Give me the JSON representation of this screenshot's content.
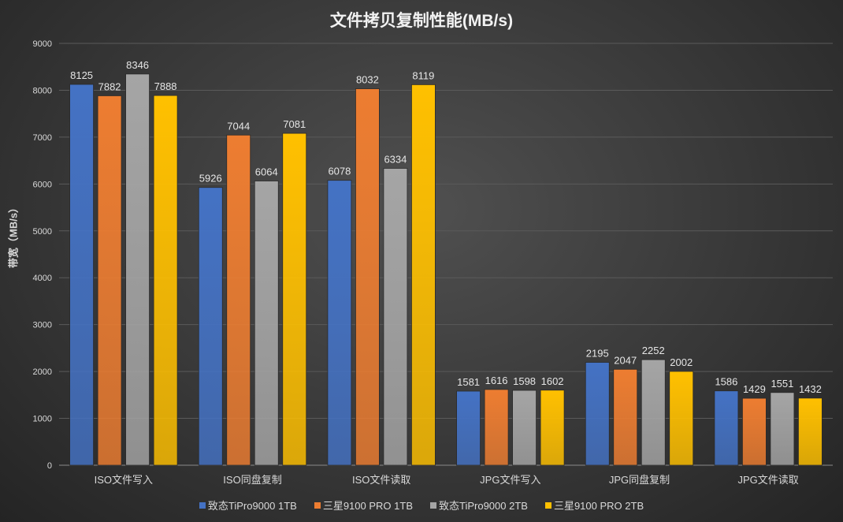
{
  "chart_data": {
    "type": "bar",
    "title": "文件拷贝复制性能(MB/s)",
    "xlabel": "",
    "ylabel": "带宽（MB/s）",
    "ylim": [
      0,
      9000
    ],
    "yticks": [
      0,
      1000,
      2000,
      3000,
      4000,
      5000,
      6000,
      7000,
      8000,
      9000
    ],
    "grid": true,
    "legend_position": "bottom",
    "categories": [
      "ISO文件写入",
      "ISO同盘复制",
      "ISO文件读取",
      "JPG文件写入",
      "JPG同盘复制",
      "JPG文件读取"
    ],
    "series": [
      {
        "name": "致态TiPro9000 1TB",
        "color": "#4472c4",
        "values": [
          8125,
          5926,
          6078,
          1581,
          2195,
          1586
        ]
      },
      {
        "name": "三星9100 PRO 1TB",
        "color": "#ed7d31",
        "values": [
          7882,
          7044,
          8032,
          1616,
          2047,
          1429
        ]
      },
      {
        "name": "致态TiPro9000 2TB",
        "color": "#a5a5a5",
        "values": [
          8346,
          6064,
          6334,
          1598,
          2252,
          1551
        ]
      },
      {
        "name": "三星9100 PRO 2TB",
        "color": "#ffc000",
        "values": [
          7888,
          7081,
          8119,
          1602,
          2002,
          1432
        ]
      }
    ]
  }
}
